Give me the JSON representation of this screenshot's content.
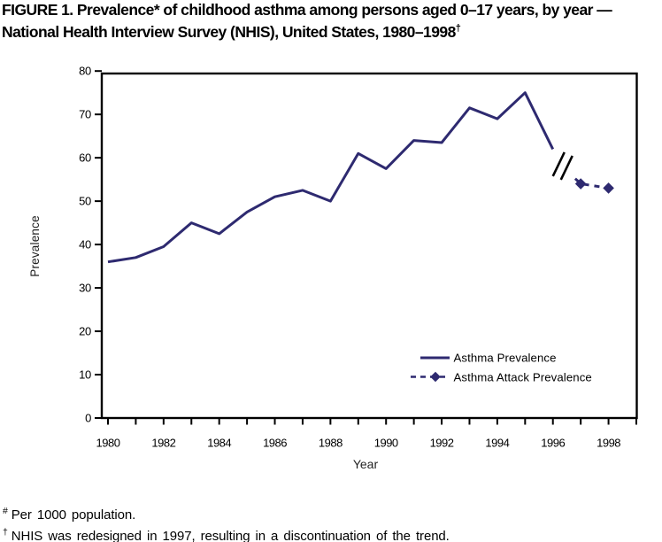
{
  "figure": {
    "title_line1": "FIGURE 1. Prevalence* of childhood asthma among persons aged 0–17 years, by year —",
    "title_line2": "National Health Interview Survey (NHIS), United States, 1980–1998",
    "title_line2_superscript": "†"
  },
  "chart_data": {
    "type": "line",
    "title": "",
    "xlabel": "Year",
    "ylabel": "Prevalence",
    "xlim": [
      1980,
      1999
    ],
    "ylim": [
      0,
      80
    ],
    "y_ticks": [
      0,
      10,
      20,
      30,
      40,
      50,
      60,
      70,
      80
    ],
    "x_tick_years": [
      1980,
      1981,
      1982,
      1983,
      1984,
      1985,
      1986,
      1987,
      1988,
      1989,
      1990,
      1991,
      1992,
      1993,
      1994,
      1995,
      1996,
      1997,
      1998,
      1999
    ],
    "x_tick_labels": [
      "1980",
      "1982",
      "1984",
      "1986",
      "1988",
      "1990",
      "1992",
      "1994",
      "1996",
      "1998"
    ],
    "grid": false,
    "frame": true,
    "series": [
      {
        "name": "Asthma Prevalence",
        "line_style": "solid",
        "marker": "none",
        "x": [
          1980,
          1981,
          1982,
          1983,
          1984,
          1985,
          1986,
          1987,
          1988,
          1989,
          1990,
          1991,
          1992,
          1993,
          1994,
          1995,
          1996
        ],
        "values": [
          36,
          37,
          39.5,
          45,
          42.5,
          47.5,
          51,
          52.5,
          50,
          61,
          57.5,
          64,
          63.5,
          71.5,
          69,
          75,
          62
        ]
      },
      {
        "name": "Asthma Attack Prevalence",
        "line_style": "dashed",
        "marker": "diamond",
        "x": [
          1997,
          1998
        ],
        "values": [
          54,
          53
        ],
        "dash_lead_in": {
          "x": 1996.8,
          "value": 55.2
        }
      }
    ],
    "annotations": {
      "axis_break": {
        "glyph": "//",
        "x": 1996.35,
        "value": 58.5,
        "meaning": "discontinuation of trend after NHIS redesign"
      }
    },
    "legend": {
      "position": "inside-right",
      "items": [
        {
          "label": "Asthma Prevalence",
          "swatch": "solid-line"
        },
        {
          "label": "Asthma Attack Prevalence",
          "swatch": "dashed-line-diamond"
        }
      ]
    },
    "colors": {
      "series": "#2e2a70",
      "axis": "#000000",
      "break_mark": "#000000"
    }
  },
  "footnotes": [
    {
      "marker": "#",
      "text": "Per 1000 population."
    },
    {
      "marker": "†",
      "text": "NHIS was redesigned in 1997, resulting in a discontinuation of the trend."
    }
  ]
}
